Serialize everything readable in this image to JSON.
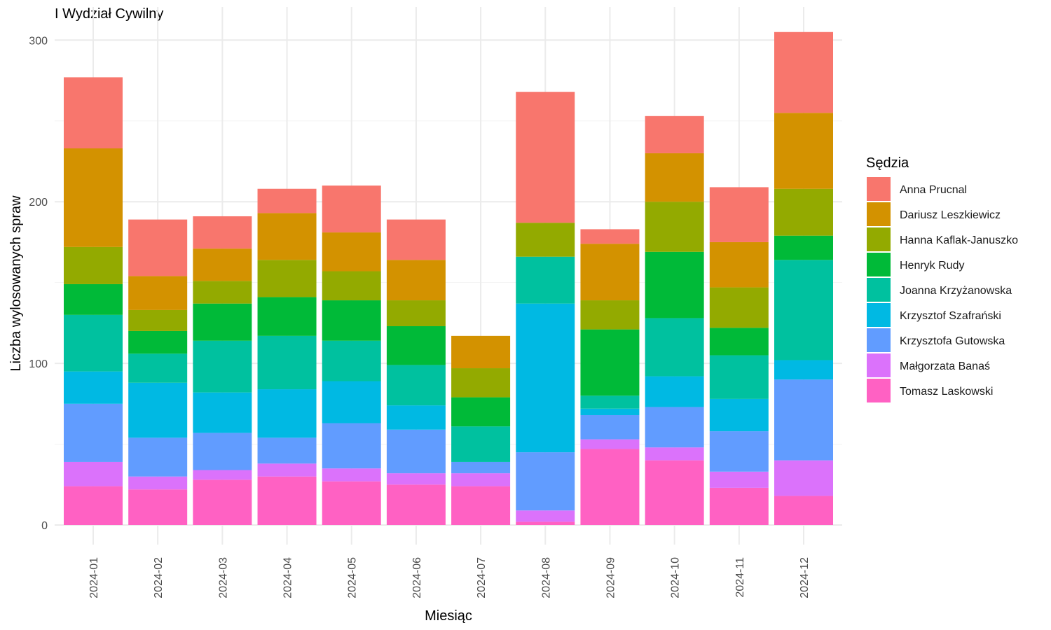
{
  "chart_data": {
    "type": "bar",
    "stacked": true,
    "title": "I Wydział Cywilny",
    "xlabel": "Miesiąc",
    "ylabel": "Liczba wylosowanych spraw",
    "ylim": [
      0,
      330
    ],
    "yticks": [
      0,
      100,
      200,
      300
    ],
    "grid": true,
    "legend_title": "Sędzia",
    "legend_position": "right",
    "categories": [
      "2024-01",
      "2024-02",
      "2024-03",
      "2024-04",
      "2024-05",
      "2024-06",
      "2024-07",
      "2024-08",
      "2024-09",
      "2024-10",
      "2024-11",
      "2024-12"
    ],
    "series": [
      {
        "name": "Tomasz Laskowski",
        "color": "#FF61C3",
        "values": [
          24,
          22,
          28,
          30,
          27,
          25,
          24,
          2,
          47,
          40,
          23,
          18
        ]
      },
      {
        "name": "Małgorzata Banaś",
        "color": "#DB72FB",
        "values": [
          15,
          8,
          6,
          8,
          8,
          7,
          8,
          7,
          6,
          8,
          10,
          22
        ]
      },
      {
        "name": "Krzysztofa Gutowska",
        "color": "#619CFF",
        "values": [
          36,
          24,
          23,
          16,
          28,
          27,
          7,
          36,
          15,
          25,
          25,
          50
        ]
      },
      {
        "name": "Krzysztof Szafrański",
        "color": "#00B9E3",
        "values": [
          20,
          34,
          25,
          30,
          26,
          15,
          0,
          92,
          4,
          19,
          20,
          12
        ]
      },
      {
        "name": "Joanna Krzyżanowska",
        "color": "#00C19F",
        "values": [
          35,
          18,
          32,
          33,
          25,
          25,
          22,
          29,
          8,
          36,
          27,
          62
        ]
      },
      {
        "name": "Henryk Rudy",
        "color": "#00BA38",
        "values": [
          19,
          14,
          23,
          24,
          25,
          24,
          18,
          0,
          41,
          41,
          17,
          15
        ]
      },
      {
        "name": "Hanna Kaflak-Januszko",
        "color": "#93AA00",
        "values": [
          23,
          13,
          14,
          23,
          18,
          16,
          18,
          21,
          18,
          31,
          25,
          29
        ]
      },
      {
        "name": "Dariusz Leszkiewicz",
        "color": "#D39200",
        "values": [
          61,
          21,
          20,
          29,
          24,
          25,
          20,
          0,
          35,
          30,
          28,
          47
        ]
      },
      {
        "name": "Anna Prucnal",
        "color": "#F8766D",
        "values": [
          44,
          35,
          20,
          15,
          29,
          25,
          0,
          81,
          9,
          23,
          34,
          50
        ]
      }
    ],
    "legend_order": [
      "Anna Prucnal",
      "Dariusz Leszkiewicz",
      "Hanna Kaflak-Januszko",
      "Henryk Rudy",
      "Joanna Krzyżanowska",
      "Krzysztof Szafrański",
      "Krzysztofa Gutowska",
      "Małgorzata Banaś",
      "Tomasz Laskowski"
    ]
  }
}
